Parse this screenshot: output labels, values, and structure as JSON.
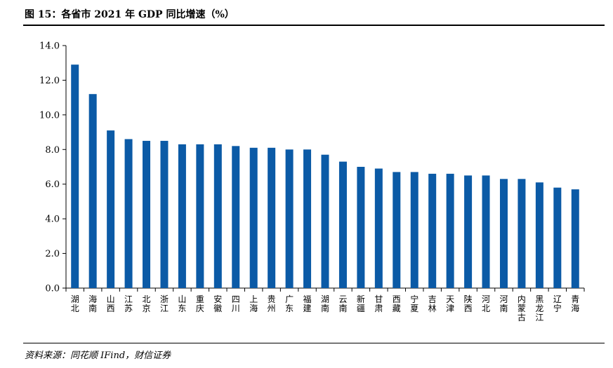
{
  "header": {
    "title": "图 15：各省市 2021 年 GDP 同比增速（%）"
  },
  "footer": {
    "source": "资料来源：同花顺 IFind，财信证券"
  },
  "colors": {
    "bar": "#0b5aa6",
    "axis": "#000000"
  },
  "chart_data": {
    "type": "bar",
    "title": "",
    "xlabel": "",
    "ylabel": "",
    "ylim": [
      0,
      14
    ],
    "yticks": [
      "0.0",
      "2.0",
      "4.0",
      "6.0",
      "8.0",
      "10.0",
      "12.0",
      "14.0"
    ],
    "grid": false,
    "legend": "none",
    "categories": [
      "湖北",
      "海南",
      "山西",
      "江苏",
      "北京",
      "浙江",
      "山东",
      "重庆",
      "安徽",
      "四川",
      "上海",
      "贵州",
      "广东",
      "福建",
      "湖南",
      "云南",
      "新疆",
      "甘肃",
      "西藏",
      "宁夏",
      "吉林",
      "天津",
      "陕西",
      "河北",
      "河南",
      "内蒙古",
      "黑龙江",
      "辽宁",
      "青海"
    ],
    "values": [
      12.9,
      11.2,
      9.1,
      8.6,
      8.5,
      8.5,
      8.3,
      8.3,
      8.3,
      8.2,
      8.1,
      8.1,
      8.0,
      8.0,
      7.7,
      7.3,
      7.0,
      6.9,
      6.7,
      6.7,
      6.6,
      6.6,
      6.5,
      6.5,
      6.3,
      6.3,
      6.1,
      5.8,
      5.7
    ]
  }
}
